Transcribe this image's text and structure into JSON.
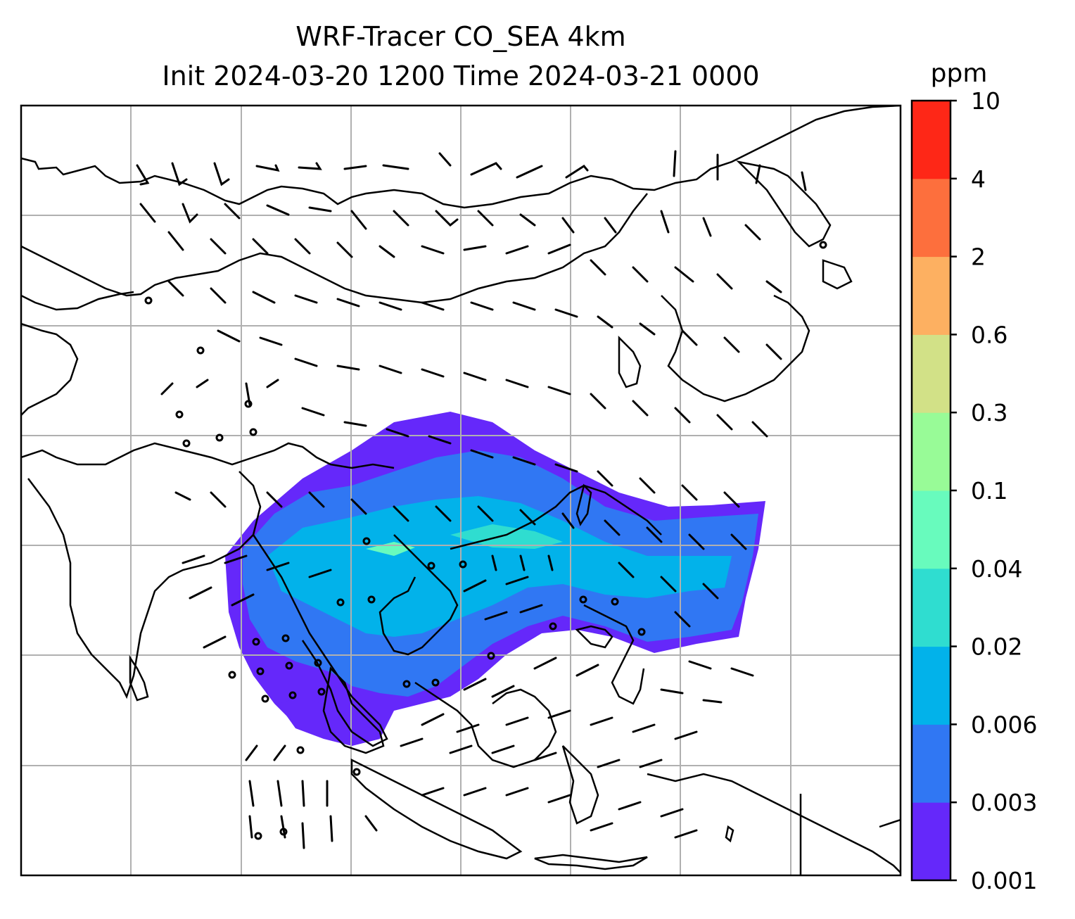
{
  "title_line1": "WRF-Tracer CO_SEA 4km",
  "title_line2": "Init 2024-03-20 1200 Time 2024-03-21 0000",
  "colorbar": {
    "unit": "ppm",
    "levels": [
      "0.001",
      "0.003",
      "0.006",
      "0.02",
      "0.04",
      "0.1",
      "0.3",
      "0.6",
      "2",
      "4",
      "10"
    ],
    "colors": [
      "#6528fa",
      "#3077f3",
      "#02b2ea",
      "#2fddd0",
      "#68fbbd",
      "#98fb97",
      "#d2e187",
      "#fdb061",
      "#fd6f3d",
      "#fe2717"
    ]
  },
  "map": {
    "gridlines": true,
    "coastline_color": "#000000",
    "barbs": "wind barbs",
    "calm_markers": "calm circles"
  }
}
